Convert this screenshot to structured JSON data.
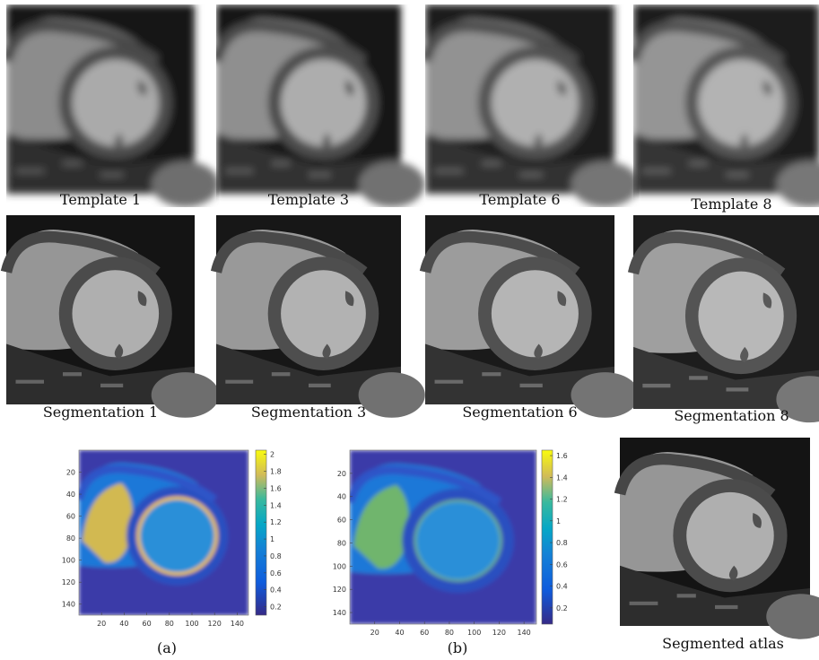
{
  "panels": [
    {
      "caption": "Template 1"
    },
    {
      "caption": "Template 3"
    },
    {
      "caption": "Template 6"
    },
    {
      "caption": "Template 8"
    },
    {
      "caption": "Segmentation 1"
    },
    {
      "caption": "Segmentation 3"
    },
    {
      "caption": "Segmentation 6"
    },
    {
      "caption": "Segmentation 8"
    }
  ],
  "heatmaps": [
    {
      "caption": "(a)",
      "xlim": [
        0,
        150
      ],
      "ylim": [
        0,
        150
      ],
      "xticks": [
        20,
        40,
        60,
        80,
        100,
        120,
        140
      ],
      "yticks": [
        20,
        40,
        60,
        80,
        100,
        120,
        140
      ],
      "clim": [
        0.1,
        2.05
      ],
      "colorbar_ticks": [
        0.2,
        0.4,
        0.6,
        0.8,
        1,
        1.2,
        1.4,
        1.6,
        1.8,
        2
      ]
    },
    {
      "caption": "(b)",
      "xlim": [
        0,
        150
      ],
      "ylim": [
        0,
        150
      ],
      "xticks": [
        20,
        40,
        60,
        80,
        100,
        120,
        140
      ],
      "yticks": [
        20,
        40,
        60,
        80,
        100,
        120,
        140
      ],
      "clim": [
        0.05,
        1.65
      ],
      "colorbar_ticks": [
        0.2,
        0.4,
        0.6,
        0.8,
        1,
        1.2,
        1.4,
        1.6
      ]
    }
  ],
  "atlas": {
    "caption": "Segmented atlas"
  }
}
